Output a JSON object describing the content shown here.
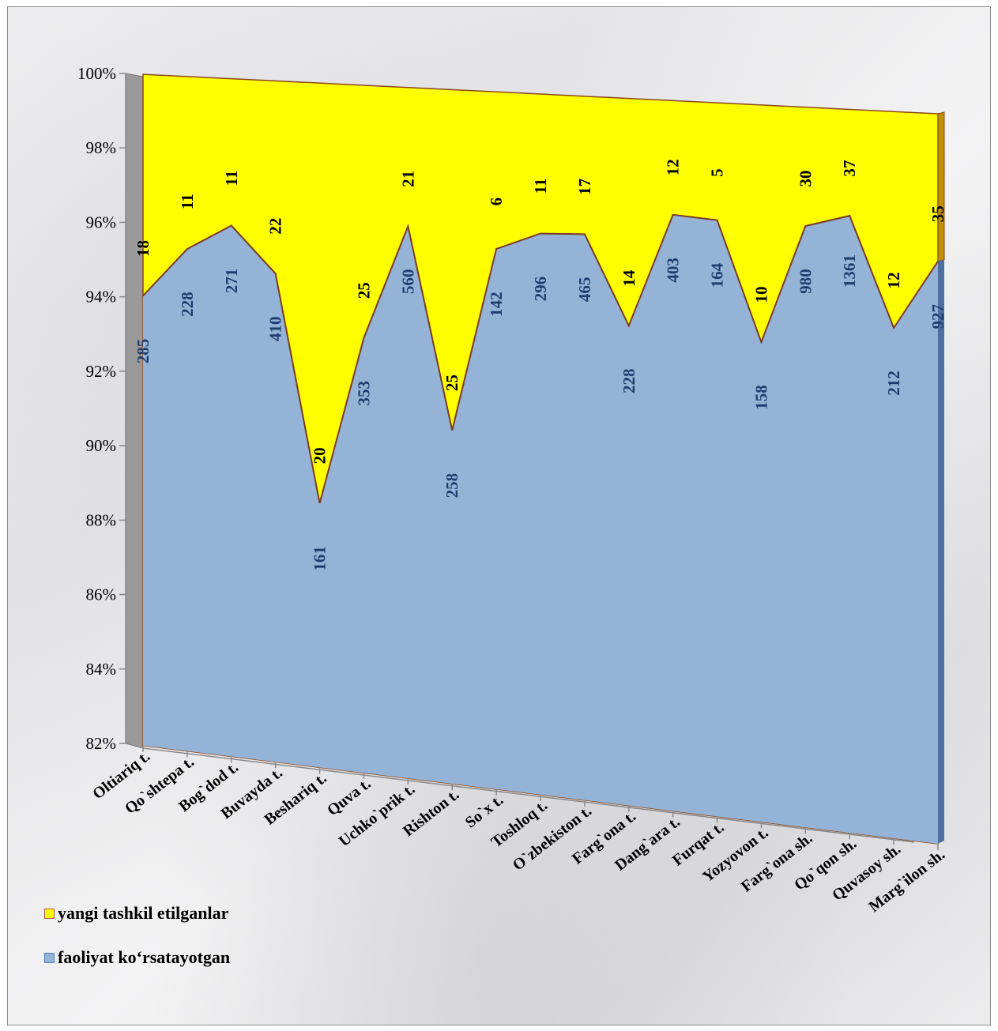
{
  "chart_data": {
    "type": "area",
    "stacking": "percent",
    "title": "",
    "xlabel": "",
    "ylabel": "",
    "ylim": [
      82,
      100
    ],
    "y_ticks": [
      "82%",
      "84%",
      "86%",
      "88%",
      "90%",
      "92%",
      "94%",
      "96%",
      "98%",
      "100%"
    ],
    "grid": false,
    "legend_position": "bottom-left",
    "categories": [
      "Oltiariq t.",
      "Qo`shtepa t.",
      "Bog`dod t.",
      "Buvayda t.",
      "Beshariq t.",
      "Quva t.",
      "Uchko`prik t.",
      "Rishton t.",
      "So`x t.",
      "Toshloq t.",
      "O`zbekiston t.",
      "Farg`ona t.",
      "Dang`ara t.",
      "Furqat t.",
      "Yozyovon t.",
      "Farg`ona sh.",
      "Qo`qon sh.",
      "Quvasoy sh.",
      "Marg`ilon sh."
    ],
    "series": [
      {
        "name": "faoliyat ko‘rsatayotgan",
        "color": "#95b3d7",
        "values": [
          285,
          228,
          271,
          410,
          161,
          353,
          560,
          258,
          142,
          296,
          465,
          228,
          403,
          164,
          158,
          980,
          1361,
          212,
          927
        ]
      },
      {
        "name": "yangi tashkil etilganlar",
        "color": "#ffff00",
        "values": [
          18,
          11,
          11,
          22,
          20,
          25,
          21,
          25,
          6,
          11,
          17,
          14,
          12,
          5,
          10,
          30,
          37,
          12,
          35
        ]
      }
    ]
  },
  "legend": {
    "yellow_label": "yangi tashkil etilganlar",
    "blue_label": "faoliyat ko‘rsatayotgan"
  }
}
